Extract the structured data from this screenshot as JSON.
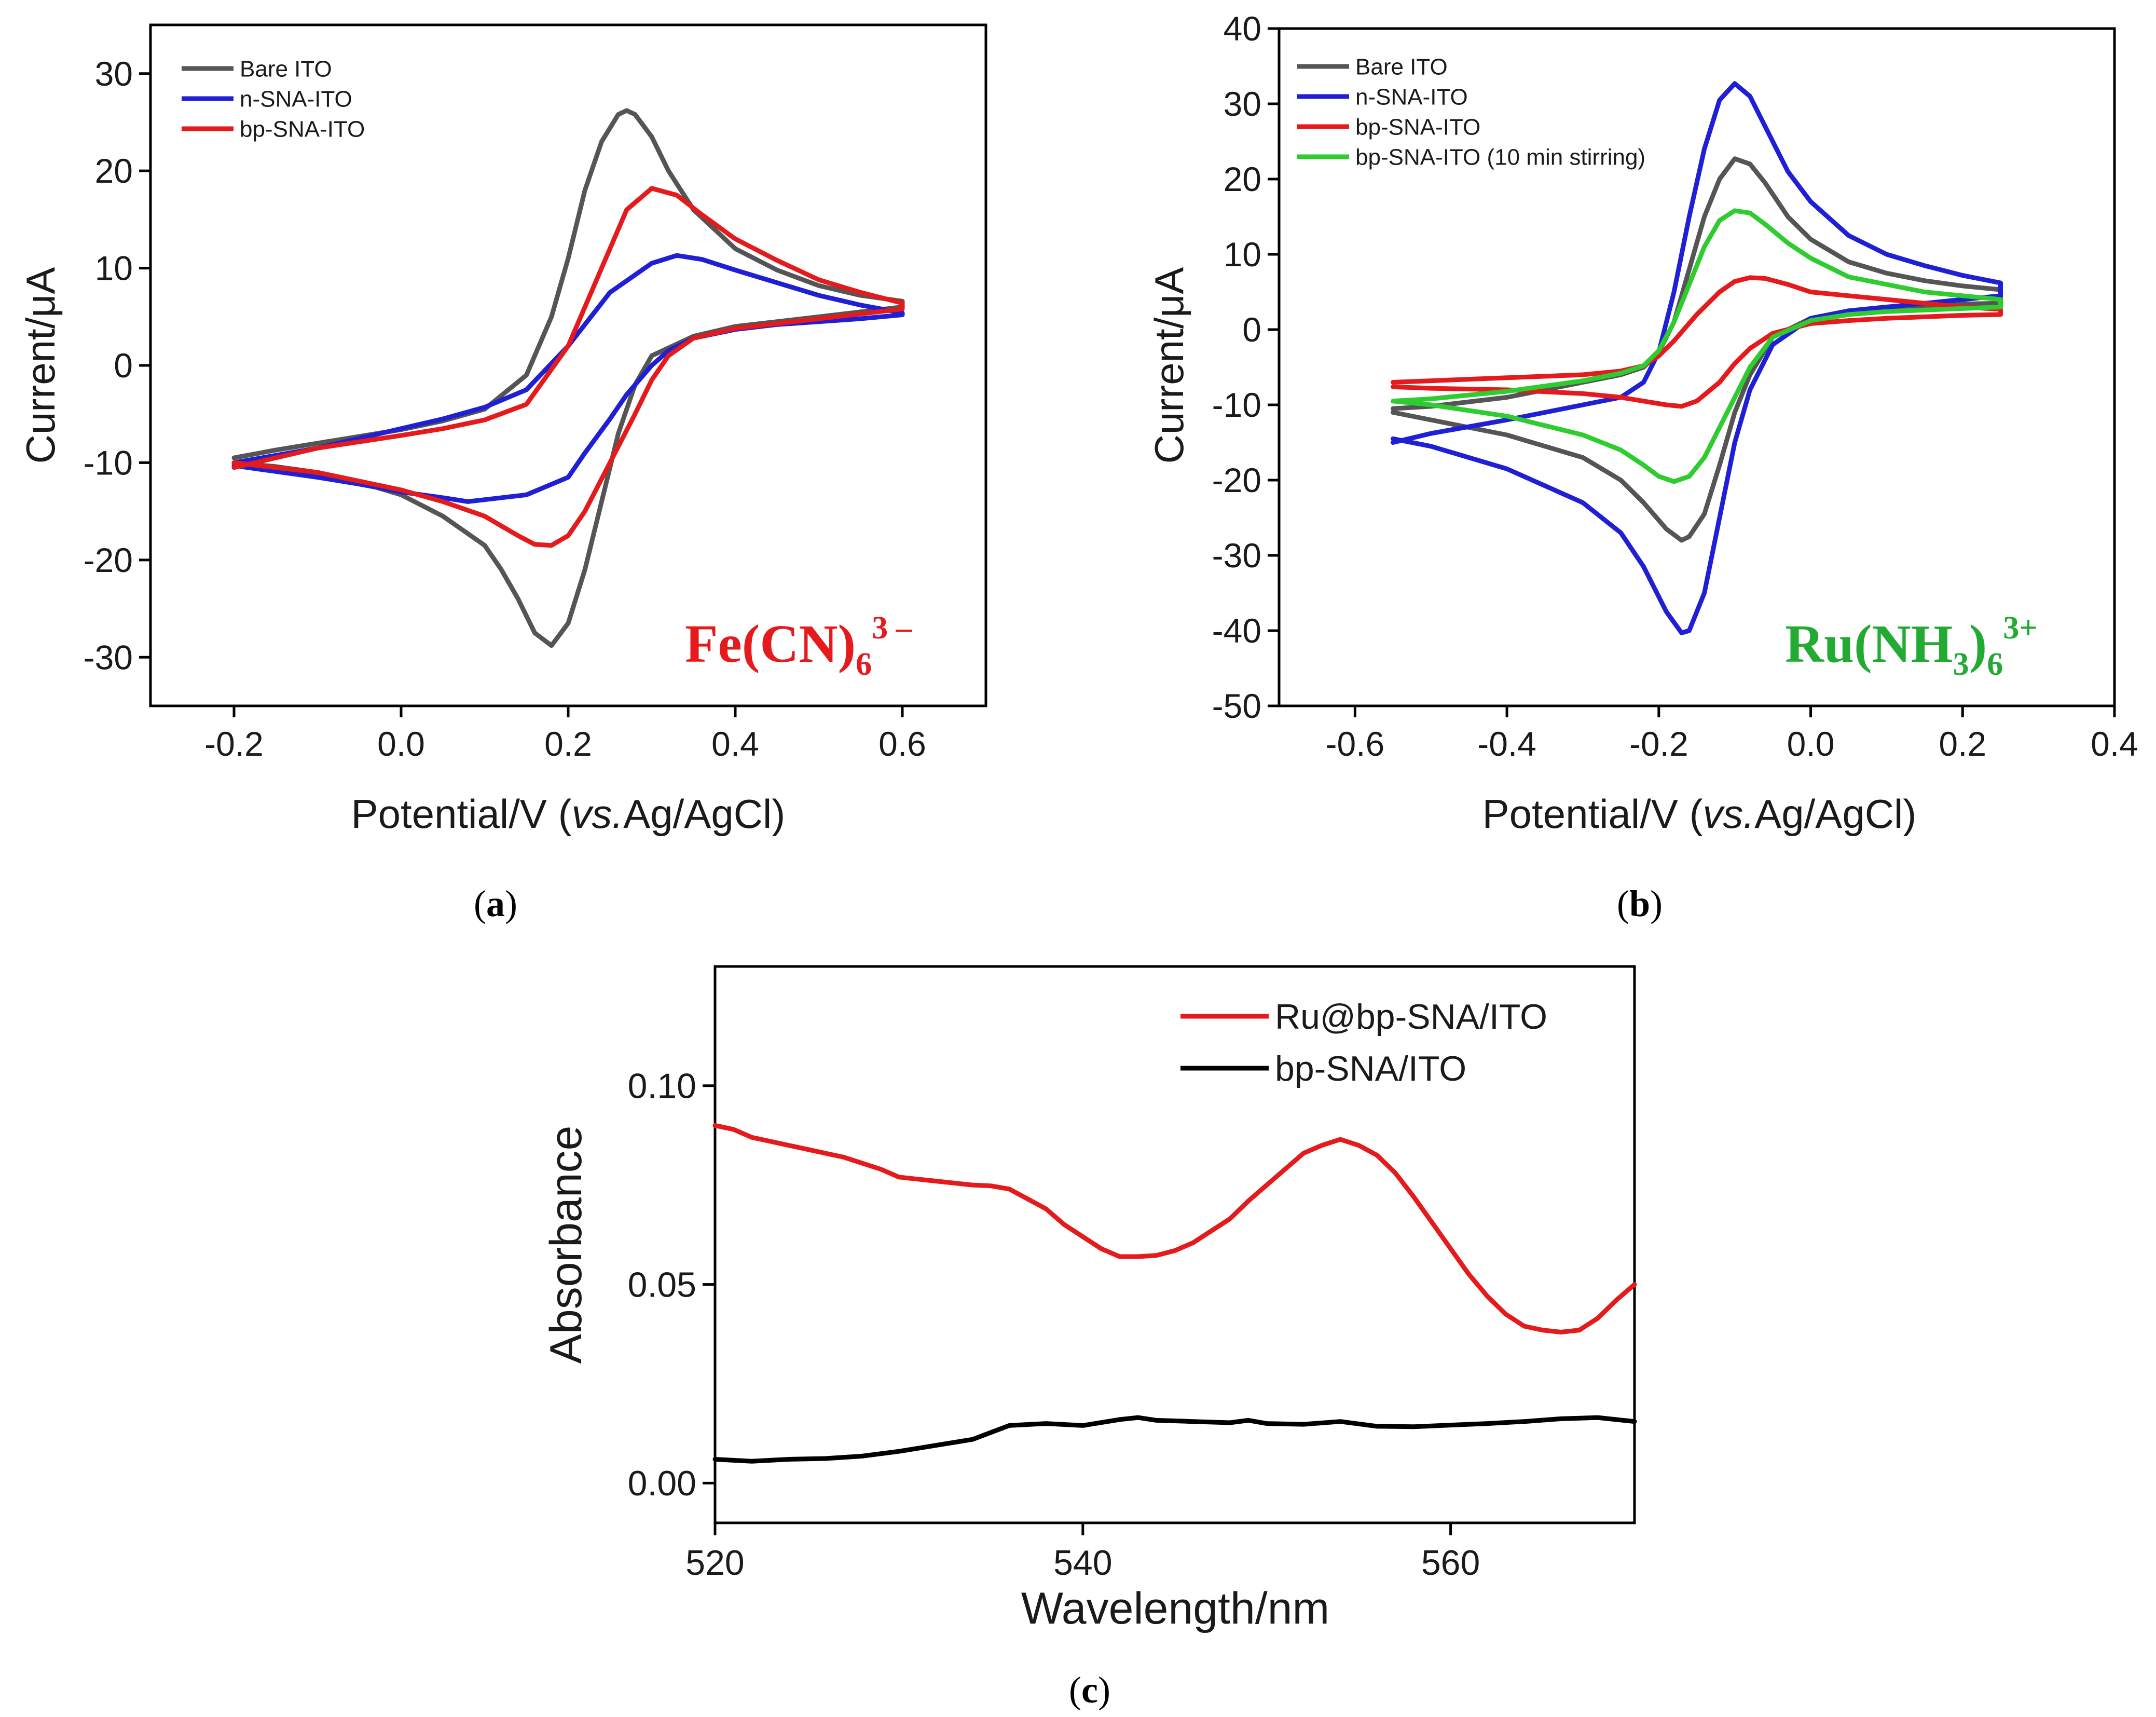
{
  "chart_data": [
    {
      "id": "a",
      "type": "line",
      "panel_label": "a",
      "xlabel_main": "Potential/V (",
      "xlabel_italic": "vs.",
      "xlabel_tail": "Ag/AgCl)",
      "ylabel": "Current/μA",
      "xlim": [
        -0.3,
        0.7
      ],
      "ylim": [
        -35,
        35
      ],
      "xticks": [
        -0.2,
        0.0,
        0.2,
        0.4,
        0.6
      ],
      "xtick_labels": [
        "-0.2",
        "0.0",
        "0.2",
        "0.4",
        "0.6"
      ],
      "yticks": [
        -30,
        -20,
        -10,
        0,
        10,
        20,
        30
      ],
      "ytick_labels": [
        "-30",
        "-20",
        "-10",
        "0",
        "10",
        "20",
        "30"
      ],
      "annotation": {
        "base": "Fe(CN)",
        "sub": "6",
        "sup": "3 –",
        "color": "#e41a1c"
      },
      "series": [
        {
          "name": "Bare ITO",
          "color": "#555555",
          "x": [
            -0.2,
            -0.15,
            -0.1,
            -0.05,
            0.0,
            0.05,
            0.1,
            0.15,
            0.18,
            0.2,
            0.22,
            0.24,
            0.26,
            0.27,
            0.28,
            0.3,
            0.32,
            0.35,
            0.4,
            0.45,
            0.5,
            0.55,
            0.6,
            0.6,
            0.55,
            0.5,
            0.45,
            0.4,
            0.35,
            0.3,
            0.28,
            0.26,
            0.24,
            0.22,
            0.2,
            0.18,
            0.16,
            0.14,
            0.12,
            0.1,
            0.05,
            0.0,
            -0.05,
            -0.1,
            -0.15,
            -0.2
          ],
          "y": [
            -9.5,
            -8.7,
            -8,
            -7.3,
            -6.6,
            -5.7,
            -4.5,
            -1,
            5,
            11,
            18,
            23,
            25.8,
            26.2,
            25.8,
            23.5,
            20,
            16,
            12,
            9.8,
            8.2,
            7.2,
            6.6,
            6,
            5.5,
            5,
            4.5,
            4,
            3,
            1,
            -2,
            -7,
            -14,
            -21,
            -26.5,
            -28.8,
            -27.5,
            -24,
            -21,
            -18.5,
            -15.5,
            -13.3,
            -12,
            -11,
            -10.4,
            -10
          ]
        },
        {
          "name": "n-SNA-ITO",
          "color": "#1f1fd6",
          "x": [
            -0.2,
            -0.1,
            0.0,
            0.05,
            0.1,
            0.15,
            0.2,
            0.25,
            0.3,
            0.33,
            0.36,
            0.4,
            0.45,
            0.5,
            0.55,
            0.6,
            0.6,
            0.55,
            0.5,
            0.45,
            0.4,
            0.35,
            0.32,
            0.3,
            0.27,
            0.25,
            0.22,
            0.2,
            0.15,
            0.1,
            0.08,
            0.05,
            0.0,
            -0.05,
            -0.1,
            -0.2
          ],
          "y": [
            -10,
            -8.5,
            -6.5,
            -5.5,
            -4.3,
            -2.5,
            2,
            7.5,
            10.5,
            11.3,
            10.9,
            9.8,
            8.5,
            7.2,
            6.2,
            5.4,
            5.2,
            4.8,
            4.5,
            4.2,
            3.7,
            2.8,
            1.5,
            0,
            -3,
            -5.5,
            -9,
            -11.5,
            -13.3,
            -13.8,
            -14,
            -13.6,
            -13,
            -12.2,
            -11.5,
            -10.3
          ]
        },
        {
          "name": "bp-SNA-ITO",
          "color": "#e41a1c",
          "x": [
            -0.2,
            -0.1,
            0.0,
            0.05,
            0.1,
            0.15,
            0.2,
            0.24,
            0.27,
            0.3,
            0.33,
            0.36,
            0.4,
            0.45,
            0.5,
            0.55,
            0.6,
            0.6,
            0.55,
            0.5,
            0.45,
            0.4,
            0.35,
            0.32,
            0.3,
            0.28,
            0.25,
            0.22,
            0.2,
            0.18,
            0.16,
            0.14,
            0.12,
            0.1,
            0.05,
            0.0,
            -0.1,
            -0.2
          ],
          "y": [
            -10.5,
            -8.5,
            -7.2,
            -6.5,
            -5.6,
            -4,
            2,
            10,
            16,
            18.2,
            17.5,
            15.5,
            13,
            10.8,
            8.8,
            7.5,
            6.4,
            5.8,
            5.3,
            4.8,
            4.3,
            3.8,
            2.8,
            1,
            -1.5,
            -5,
            -10,
            -15,
            -17.5,
            -18.5,
            -18.4,
            -17.5,
            -16.5,
            -15.5,
            -14,
            -12.8,
            -11,
            -10
          ]
        }
      ]
    },
    {
      "id": "b",
      "type": "line",
      "panel_label": "b",
      "xlabel_main": "Potential/V (",
      "xlabel_italic": "vs.",
      "xlabel_tail": "Ag/AgCl)",
      "ylabel": "Current/μA",
      "xlim": [
        -0.7,
        0.4
      ],
      "ylim": [
        -50,
        40
      ],
      "xticks": [
        -0.6,
        -0.4,
        -0.2,
        0.0,
        0.2,
        0.4
      ],
      "xtick_labels": [
        "-0.6",
        "-0.4",
        "-0.2",
        "0.0",
        "0.2",
        "0.4"
      ],
      "yticks": [
        -50,
        -40,
        -30,
        -20,
        -10,
        0,
        10,
        20,
        30,
        40
      ],
      "ytick_labels": [
        "-50",
        "-40",
        "-30",
        "-20",
        "-10",
        "0",
        "10",
        "20",
        "30",
        "40"
      ],
      "annotation": {
        "base": "Ru(NH",
        "sub1": "3",
        "mid": ")",
        "sub": "6",
        "sup": "3+",
        "color": "#22aa33"
      },
      "series": [
        {
          "name": "Bare ITO",
          "color": "#555555",
          "x": [
            -0.55,
            -0.5,
            -0.4,
            -0.3,
            -0.25,
            -0.22,
            -0.2,
            -0.18,
            -0.16,
            -0.14,
            -0.12,
            -0.1,
            -0.08,
            -0.06,
            -0.03,
            0.0,
            0.05,
            0.1,
            0.15,
            0.2,
            0.25,
            0.25,
            0.2,
            0.15,
            0.1,
            0.05,
            0.0,
            -0.05,
            -0.08,
            -0.1,
            -0.12,
            -0.14,
            -0.16,
            -0.17,
            -0.19,
            -0.22,
            -0.25,
            -0.3,
            -0.4,
            -0.5,
            -0.55
          ],
          "y": [
            -10.5,
            -10.2,
            -9,
            -7,
            -6,
            -5,
            -3,
            1,
            8,
            15,
            20,
            22.7,
            22,
            19.5,
            15,
            12,
            9,
            7.5,
            6.5,
            5.8,
            5.3,
            3.5,
            3.4,
            3.2,
            3,
            2.5,
            1.5,
            -1,
            -6,
            -11,
            -18,
            -24.5,
            -27.5,
            -28,
            -26.5,
            -23,
            -20,
            -17,
            -14,
            -12,
            -11
          ]
        },
        {
          "name": "n-SNA-ITO",
          "color": "#1f1fd6",
          "x": [
            -0.55,
            -0.5,
            -0.4,
            -0.3,
            -0.25,
            -0.22,
            -0.2,
            -0.18,
            -0.16,
            -0.14,
            -0.12,
            -0.1,
            -0.08,
            -0.06,
            -0.03,
            0.0,
            0.05,
            0.1,
            0.15,
            0.2,
            0.25,
            0.25,
            0.2,
            0.15,
            0.1,
            0.05,
            0.0,
            -0.05,
            -0.08,
            -0.1,
            -0.12,
            -0.14,
            -0.16,
            -0.17,
            -0.19,
            -0.22,
            -0.25,
            -0.3,
            -0.4,
            -0.5,
            -0.55
          ],
          "y": [
            -15,
            -13.8,
            -12,
            -10,
            -9,
            -7,
            -3,
            5,
            15,
            24,
            30.5,
            32.7,
            31,
            27,
            21,
            17,
            12.5,
            10,
            8.5,
            7.2,
            6.2,
            4.5,
            4,
            3.5,
            3,
            2.5,
            1.5,
            -2,
            -8,
            -15,
            -25,
            -35,
            -40,
            -40.3,
            -37.5,
            -31.5,
            -27,
            -23,
            -18.5,
            -15.5,
            -14.5
          ]
        },
        {
          "name": "bp-SNA-ITO",
          "color": "#e41a1c",
          "x": [
            -0.55,
            -0.5,
            -0.4,
            -0.3,
            -0.25,
            -0.22,
            -0.2,
            -0.18,
            -0.15,
            -0.12,
            -0.1,
            -0.08,
            -0.06,
            -0.03,
            0.0,
            0.05,
            0.1,
            0.15,
            0.2,
            0.25,
            0.25,
            0.2,
            0.15,
            0.1,
            0.05,
            0.0,
            -0.05,
            -0.08,
            -0.1,
            -0.12,
            -0.15,
            -0.17,
            -0.19,
            -0.22,
            -0.25,
            -0.3,
            -0.4,
            -0.5,
            -0.55
          ],
          "y": [
            -7,
            -6.8,
            -6.4,
            -6,
            -5.5,
            -4.8,
            -3.5,
            -1.5,
            2,
            5,
            6.4,
            6.9,
            6.8,
            6,
            5,
            4.5,
            4,
            3.5,
            3,
            2.7,
            2,
            1.9,
            1.7,
            1.5,
            1.2,
            0.8,
            -0.5,
            -2.5,
            -4.5,
            -7,
            -9.5,
            -10.2,
            -10,
            -9.5,
            -9,
            -8.5,
            -8,
            -7.8,
            -7.6
          ]
        },
        {
          "name": "bp-SNA-ITO (10 min stirring)",
          "color": "#2ecc2e",
          "x": [
            -0.55,
            -0.5,
            -0.4,
            -0.3,
            -0.25,
            -0.22,
            -0.2,
            -0.18,
            -0.16,
            -0.14,
            -0.12,
            -0.1,
            -0.08,
            -0.06,
            -0.03,
            0.0,
            0.05,
            0.1,
            0.15,
            0.2,
            0.25,
            0.25,
            0.2,
            0.15,
            0.1,
            0.05,
            0.0,
            -0.05,
            -0.08,
            -0.1,
            -0.12,
            -0.14,
            -0.16,
            -0.18,
            -0.2,
            -0.22,
            -0.25,
            -0.3,
            -0.4,
            -0.5,
            -0.55
          ],
          "y": [
            -9.5,
            -9.2,
            -8.2,
            -6.8,
            -5.8,
            -4.8,
            -2.8,
            1,
            6,
            11,
            14.5,
            15.8,
            15.5,
            14,
            11.5,
            9.5,
            7,
            6,
            5,
            4.5,
            4,
            3,
            2.8,
            2.6,
            2.4,
            2,
            1.2,
            -1,
            -5,
            -9,
            -13,
            -17,
            -19.5,
            -20.2,
            -19.5,
            -18,
            -16,
            -14,
            -11.5,
            -10,
            -9.5
          ]
        }
      ]
    },
    {
      "id": "c",
      "type": "line",
      "panel_label": "c",
      "xlabel_main": "Wavelength/nm",
      "ylabel": "Absorbance",
      "xlim": [
        520,
        570
      ],
      "ylim": [
        -0.01,
        0.13
      ],
      "xticks": [
        520,
        540,
        560
      ],
      "xtick_labels": [
        "520",
        "540",
        "560"
      ],
      "yticks": [
        0.0,
        0.05,
        0.1
      ],
      "ytick_labels": [
        "0.00",
        "0.05",
        "0.10"
      ],
      "series": [
        {
          "name": "Ru@bp-SNA/ITO",
          "color": "#e41a1c",
          "x": [
            520,
            521,
            522,
            523,
            524,
            525,
            526,
            527,
            528,
            529,
            530,
            531,
            532,
            533,
            534,
            535,
            536,
            537,
            538,
            539,
            540,
            541,
            542,
            543,
            544,
            545,
            546,
            547,
            548,
            549,
            550,
            551,
            552,
            553,
            554,
            555,
            556,
            557,
            558,
            559,
            560,
            561,
            562,
            563,
            564,
            565,
            566,
            567,
            568,
            569,
            570
          ],
          "y": [
            0.09,
            0.089,
            0.087,
            0.086,
            0.085,
            0.084,
            0.083,
            0.082,
            0.0805,
            0.079,
            0.077,
            0.0765,
            0.076,
            0.0755,
            0.075,
            0.0748,
            0.074,
            0.0715,
            0.069,
            0.065,
            0.062,
            0.059,
            0.057,
            0.057,
            0.0573,
            0.0585,
            0.0605,
            0.0635,
            0.0665,
            0.071,
            0.075,
            0.079,
            0.083,
            0.085,
            0.0865,
            0.085,
            0.0825,
            0.078,
            0.072,
            0.0655,
            0.059,
            0.0525,
            0.047,
            0.0425,
            0.0395,
            0.0385,
            0.038,
            0.0385,
            0.0415,
            0.046,
            0.05
          ]
        },
        {
          "name": "bp-SNA/ITO",
          "color": "#000000",
          "x": [
            520,
            522,
            524,
            526,
            528,
            530,
            532,
            534,
            536,
            538,
            540,
            542,
            543,
            544,
            546,
            548,
            549,
            550,
            552,
            554,
            556,
            558,
            560,
            562,
            564,
            566,
            568,
            570
          ],
          "y": [
            0.006,
            0.0055,
            0.006,
            0.0062,
            0.0068,
            0.008,
            0.0095,
            0.011,
            0.0145,
            0.015,
            0.0145,
            0.016,
            0.0165,
            0.0158,
            0.0155,
            0.0152,
            0.0158,
            0.015,
            0.0148,
            0.0155,
            0.0143,
            0.0142,
            0.0146,
            0.015,
            0.0155,
            0.0162,
            0.0165,
            0.0155
          ]
        }
      ]
    }
  ]
}
